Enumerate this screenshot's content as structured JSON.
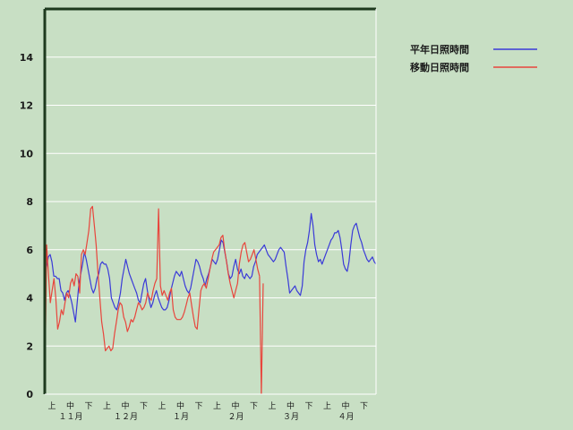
{
  "chart_data": {
    "type": "line",
    "title": "",
    "xlabel": "",
    "ylabel": "",
    "ylim": [
      0,
      16
    ],
    "y_ticks": [
      "0",
      "2",
      "4",
      "6",
      "8",
      "10",
      "12",
      "14"
    ],
    "grid": true,
    "legend_position": "top-right",
    "decades": [
      "上",
      "中",
      "下",
      "上",
      "中",
      "下",
      "上",
      "中",
      "下",
      "上",
      "中",
      "下",
      "上",
      "中",
      "下",
      "上",
      "中",
      "下"
    ],
    "months": [
      "１１月",
      "１２月",
      "１月",
      "２月",
      "３月",
      "４月"
    ],
    "colors": {
      "blue": "#3a3ad8",
      "red": "#e8453c",
      "axis": "#1e3a1e",
      "grid": "#ffffff"
    },
    "series": [
      {
        "name": "平年日照時間",
        "color": "#3a3ad8",
        "x_start": 0,
        "x_end": 182,
        "values": [
          4.9,
          5.3,
          5.7,
          5.8,
          5.5,
          4.9,
          4.9,
          4.8,
          4.8,
          4.3,
          4.2,
          3.9,
          4.2,
          4.3,
          4.1,
          3.8,
          3.4,
          3.0,
          3.8,
          4.6,
          5.0,
          5.4,
          5.9,
          5.6,
          5.2,
          4.8,
          4.4,
          4.2,
          4.4,
          4.8,
          5.0,
          5.4,
          5.5,
          5.4,
          5.4,
          5.2,
          4.8,
          4.0,
          3.8,
          3.6,
          3.5,
          3.8,
          4.2,
          4.8,
          5.2,
          5.6,
          5.3,
          5.0,
          4.8,
          4.6,
          4.4,
          4.2,
          3.9,
          3.8,
          4.2,
          4.6,
          4.8,
          4.3,
          3.9,
          3.6,
          3.8,
          4.1,
          4.3,
          4.0,
          3.8,
          3.6,
          3.5,
          3.5,
          3.6,
          3.9,
          4.3,
          4.6,
          4.9,
          5.1,
          5.0,
          4.9,
          5.1,
          4.8,
          4.5,
          4.3,
          4.2,
          4.4,
          4.8,
          5.2,
          5.6,
          5.5,
          5.3,
          5.0,
          4.8,
          4.5,
          4.8,
          5.0,
          5.3,
          5.6,
          5.5,
          5.4,
          5.6,
          6.0,
          6.4,
          6.3,
          5.9,
          5.5,
          5.0,
          4.8,
          4.9,
          5.3,
          5.6,
          5.2,
          5.0,
          5.2,
          4.9,
          4.8,
          5.0,
          4.9,
          4.8,
          4.9,
          5.3,
          5.5,
          5.8,
          5.9,
          6.0,
          6.1,
          6.2,
          6.0,
          5.8,
          5.7,
          5.6,
          5.5,
          5.6,
          5.8,
          6.0,
          6.1,
          6.0,
          5.9,
          5.3,
          4.8,
          4.2,
          4.3,
          4.4,
          4.5,
          4.3,
          4.2,
          4.1,
          4.5,
          5.5,
          6.0,
          6.3,
          6.8,
          7.5,
          7.0,
          6.2,
          5.8,
          5.5,
          5.6,
          5.4,
          5.6,
          5.8,
          6.0,
          6.2,
          6.4,
          6.5,
          6.7,
          6.7,
          6.8,
          6.5,
          6.0,
          5.4,
          5.2,
          5.1,
          5.5,
          6.2,
          6.8,
          7.0,
          7.1,
          6.8,
          6.5,
          6.3,
          6.0,
          5.8,
          5.6,
          5.5,
          5.6,
          5.7,
          5.5,
          5.4
        ]
      },
      {
        "name": "移動日照時間",
        "color": "#e8453c",
        "x_start": 0,
        "x_end": 118,
        "values": [
          0.0,
          6.2,
          5.0,
          3.8,
          4.3,
          4.8,
          4.0,
          2.7,
          3.0,
          3.5,
          3.3,
          3.8,
          4.2,
          4.0,
          4.6,
          4.8,
          4.5,
          5.0,
          4.9,
          4.2,
          5.8,
          6.0,
          5.8,
          6.3,
          6.8,
          7.7,
          7.8,
          7.0,
          6.2,
          5.0,
          4.0,
          3.0,
          2.5,
          1.8,
          1.9,
          2.0,
          1.8,
          1.9,
          2.5,
          3.0,
          3.5,
          3.8,
          3.7,
          3.2,
          3.0,
          2.6,
          2.8,
          3.1,
          3.0,
          3.2,
          3.5,
          3.8,
          3.7,
          3.5,
          3.6,
          3.8,
          4.2,
          4.0,
          3.9,
          4.3,
          4.6,
          4.8,
          7.7,
          4.5,
          4.1,
          4.3,
          4.1,
          3.9,
          4.2,
          4.4,
          3.5,
          3.2,
          3.1,
          3.1,
          3.1,
          3.2,
          3.4,
          3.7,
          4.0,
          4.2,
          3.7,
          3.2,
          2.8,
          2.7,
          3.5,
          4.3,
          4.5,
          4.6,
          4.4,
          4.8,
          5.2,
          5.6,
          5.9,
          6.0,
          6.1,
          6.2,
          6.5,
          6.6,
          6.0,
          5.5,
          5.0,
          4.6,
          4.3,
          4.0,
          4.3,
          4.6,
          5.4,
          5.9,
          6.2,
          6.3,
          5.9,
          5.5,
          5.6,
          5.8,
          6.0,
          5.6,
          5.2,
          4.9
        ]
      }
    ]
  }
}
